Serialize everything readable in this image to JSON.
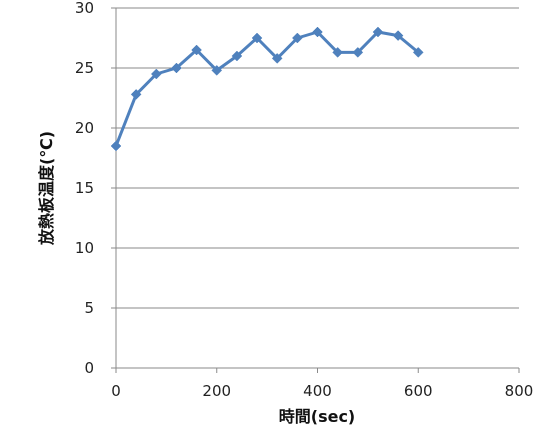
{
  "chart_data": {
    "type": "line",
    "title": "",
    "xlabel": "時間(sec)",
    "ylabel": "放熱板温度(℃)",
    "xlim": [
      0,
      800
    ],
    "ylim": [
      0,
      30
    ],
    "x_ticks": [
      "0",
      "200",
      "400",
      "600",
      "800"
    ],
    "y_ticks": [
      "0",
      "5",
      "10",
      "15",
      "20",
      "25",
      "30"
    ],
    "grid": "horizontal",
    "legend": "none",
    "series": [
      {
        "color": "#4f81bd",
        "marker": "diamond",
        "x": [
          0,
          40,
          80,
          120,
          160,
          200,
          240,
          280,
          320,
          360,
          400,
          440,
          480,
          520,
          560,
          600
        ],
        "y": [
          18.5,
          22.8,
          24.5,
          25.0,
          26.5,
          24.8,
          26.0,
          27.5,
          25.8,
          27.5,
          28.0,
          26.3,
          26.3,
          28.0,
          27.7,
          26.3
        ]
      }
    ]
  }
}
